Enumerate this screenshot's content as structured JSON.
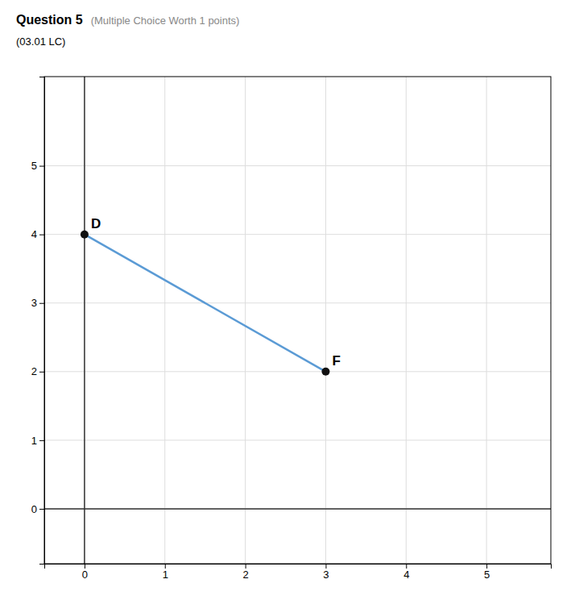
{
  "chart_data": {
    "type": "line",
    "title": "Question 5",
    "subtitle": "(03.01 LC)",
    "annotations": [
      {
        "text": "(Multiple Choice Worth 1 points)"
      },
      {
        "text": "D",
        "x": 0,
        "y": 4
      },
      {
        "text": "F",
        "x": 3,
        "y": 2
      }
    ],
    "x": [
      0,
      3
    ],
    "values": [
      4,
      2
    ],
    "color": "#5b9bd5",
    "marker": "circle",
    "xlim": [
      -0.5,
      5.8
    ],
    "ylim": [
      -0.8,
      6.3
    ],
    "xticks": [
      0,
      1,
      2,
      3,
      4,
      5
    ],
    "yticks": [
      0,
      1,
      2,
      3,
      4,
      5
    ],
    "grid": true
  }
}
